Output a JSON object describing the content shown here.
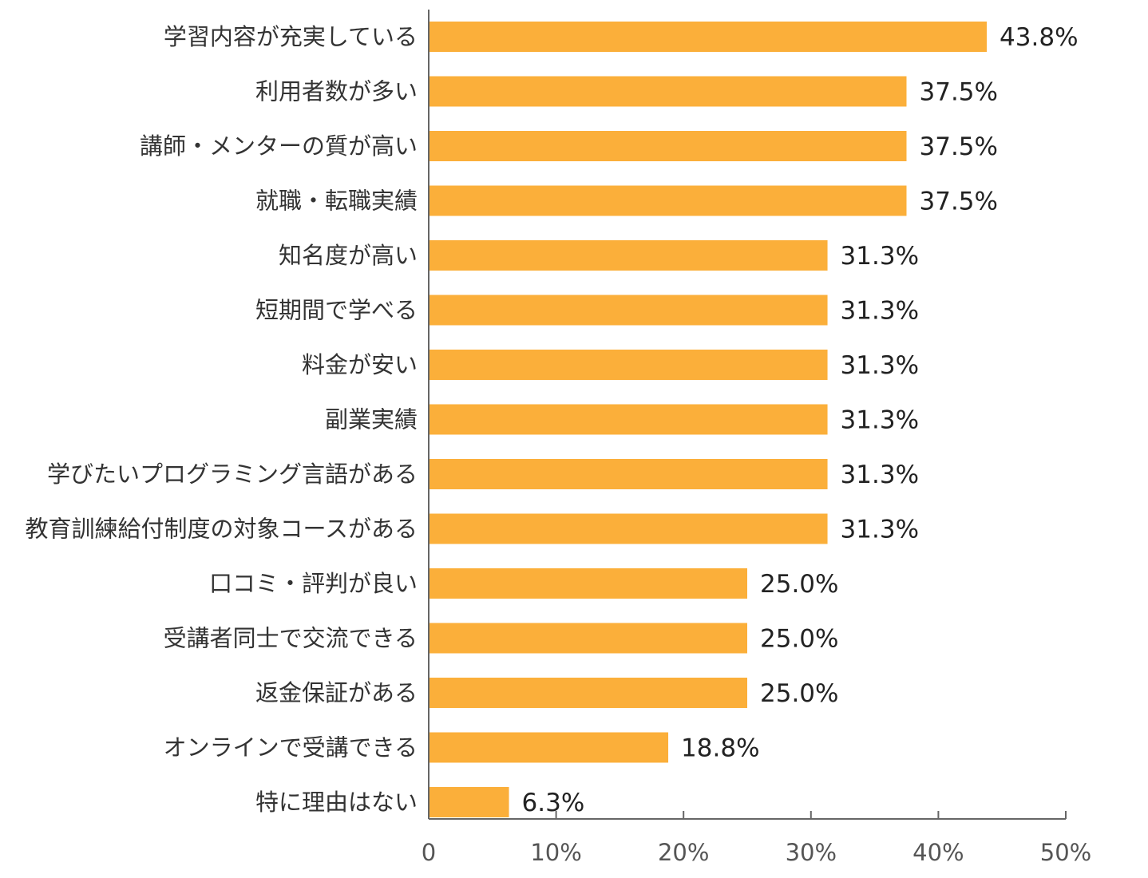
{
  "colors": {
    "bar": "#FBAF3A",
    "axis": "#666666"
  },
  "chart_data": {
    "type": "bar",
    "orientation": "horizontal",
    "title": "",
    "xlabel": "",
    "ylabel": "",
    "xlim": [
      0,
      50
    ],
    "unit": "%",
    "grid": false,
    "legend": "none",
    "categories": [
      "学習内容が充実している",
      "利用者数が多い",
      "講師・メンターの質が高い",
      "就職・転職実績",
      "知名度が高い",
      "短期間で学べる",
      "料金が安い",
      "副業実績",
      "学びたいプログラミング言語がある",
      "教育訓練給付制度の対象コースがある",
      "口コミ・評判が良い",
      "受講者同士で交流できる",
      "返金保証がある",
      "オンラインで受講できる",
      "特に理由はない"
    ],
    "values": [
      43.8,
      37.5,
      37.5,
      37.5,
      31.3,
      31.3,
      31.3,
      31.3,
      31.3,
      31.3,
      25.0,
      25.0,
      25.0,
      18.8,
      6.3
    ],
    "value_labels": [
      "43.8%",
      "37.5%",
      "37.5%",
      "37.5%",
      "31.3%",
      "31.3%",
      "31.3%",
      "31.3%",
      "31.3%",
      "31.3%",
      "25.0%",
      "25.0%",
      "25.0%",
      "18.8%",
      "6.3%"
    ],
    "x_ticks": [
      0,
      10,
      20,
      30,
      40,
      50
    ],
    "x_tick_labels": [
      "0",
      "10%",
      "20%",
      "30%",
      "40%",
      "50%"
    ]
  }
}
